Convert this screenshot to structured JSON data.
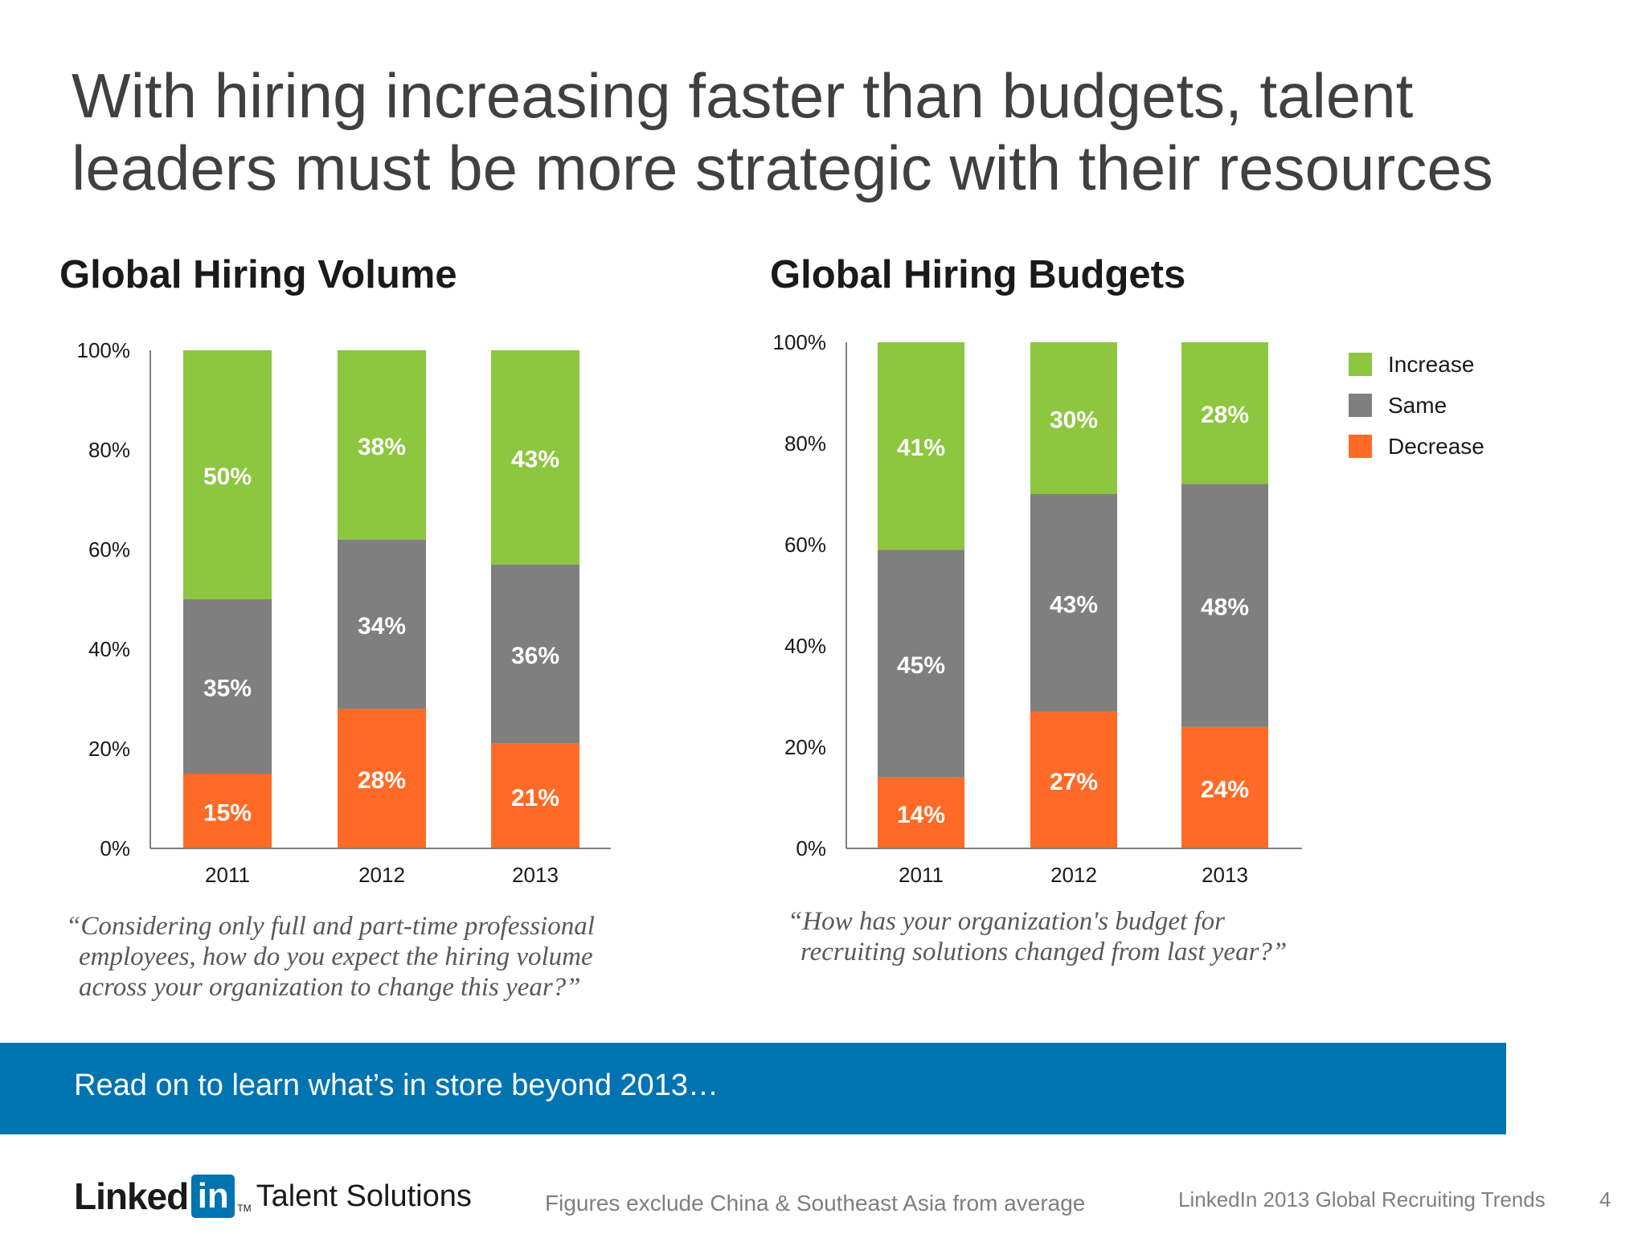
{
  "headline": "With hiring increasing faster than budgets, talent leaders must be more strategic with their resources",
  "colors": {
    "increase": "#8dc63f",
    "same": "#7f7f7f",
    "decrease": "#ff6b26",
    "banner": "#0073b1"
  },
  "legend": [
    {
      "key": "increase",
      "label": "Increase"
    },
    {
      "key": "same",
      "label": "Same"
    },
    {
      "key": "decrease",
      "label": "Decrease"
    }
  ],
  "chart_data": [
    {
      "type": "bar",
      "stacked": true,
      "title": "Global Hiring Volume",
      "categories": [
        "2011",
        "2012",
        "2013"
      ],
      "yticks": [
        "0%",
        "20%",
        "40%",
        "60%",
        "80%",
        "100%"
      ],
      "ylim": [
        0,
        100
      ],
      "series": [
        {
          "name": "Decrease",
          "values": [
            15,
            28,
            21
          ],
          "labels": [
            "15%",
            "28%",
            "21%"
          ]
        },
        {
          "name": "Same",
          "values": [
            35,
            34,
            36
          ],
          "labels": [
            "35%",
            "34%",
            "36%"
          ]
        },
        {
          "name": "Increase",
          "values": [
            50,
            38,
            43
          ],
          "labels": [
            "50%",
            "38%",
            "43%"
          ]
        }
      ],
      "question": [
        "“Considering only full and part-time professional",
        "employees, how do you expect the hiring volume",
        "across your organization to change this year?”"
      ]
    },
    {
      "type": "bar",
      "stacked": true,
      "title": "Global Hiring Budgets",
      "categories": [
        "2011",
        "2012",
        "2013"
      ],
      "yticks": [
        "0%",
        "20%",
        "40%",
        "60%",
        "80%",
        "100%"
      ],
      "ylim": [
        0,
        100
      ],
      "legend_position": "right",
      "series": [
        {
          "name": "Decrease",
          "values": [
            14,
            27,
            24
          ],
          "labels": [
            "14%",
            "27%",
            "24%"
          ]
        },
        {
          "name": "Same",
          "values": [
            45,
            43,
            48
          ],
          "labels": [
            "45%",
            "43%",
            "48%"
          ]
        },
        {
          "name": "Increase",
          "values": [
            41,
            30,
            28
          ],
          "labels": [
            "41%",
            "30%",
            "28%"
          ]
        }
      ],
      "question": [
        "“How has your organization's budget for",
        "recruiting solutions changed from last year?”"
      ]
    }
  ],
  "banner": {
    "text": "Read on to learn what’s in store beyond 2013…"
  },
  "footer": {
    "logo_linked": "Linked",
    "logo_in": "in",
    "logo_tm": "TM",
    "logo_sub": "Talent Solutions",
    "note": "Figures exclude China & Southeast Asia from average",
    "report": "LinkedIn 2013 Global Recruiting Trends",
    "page": "4"
  }
}
